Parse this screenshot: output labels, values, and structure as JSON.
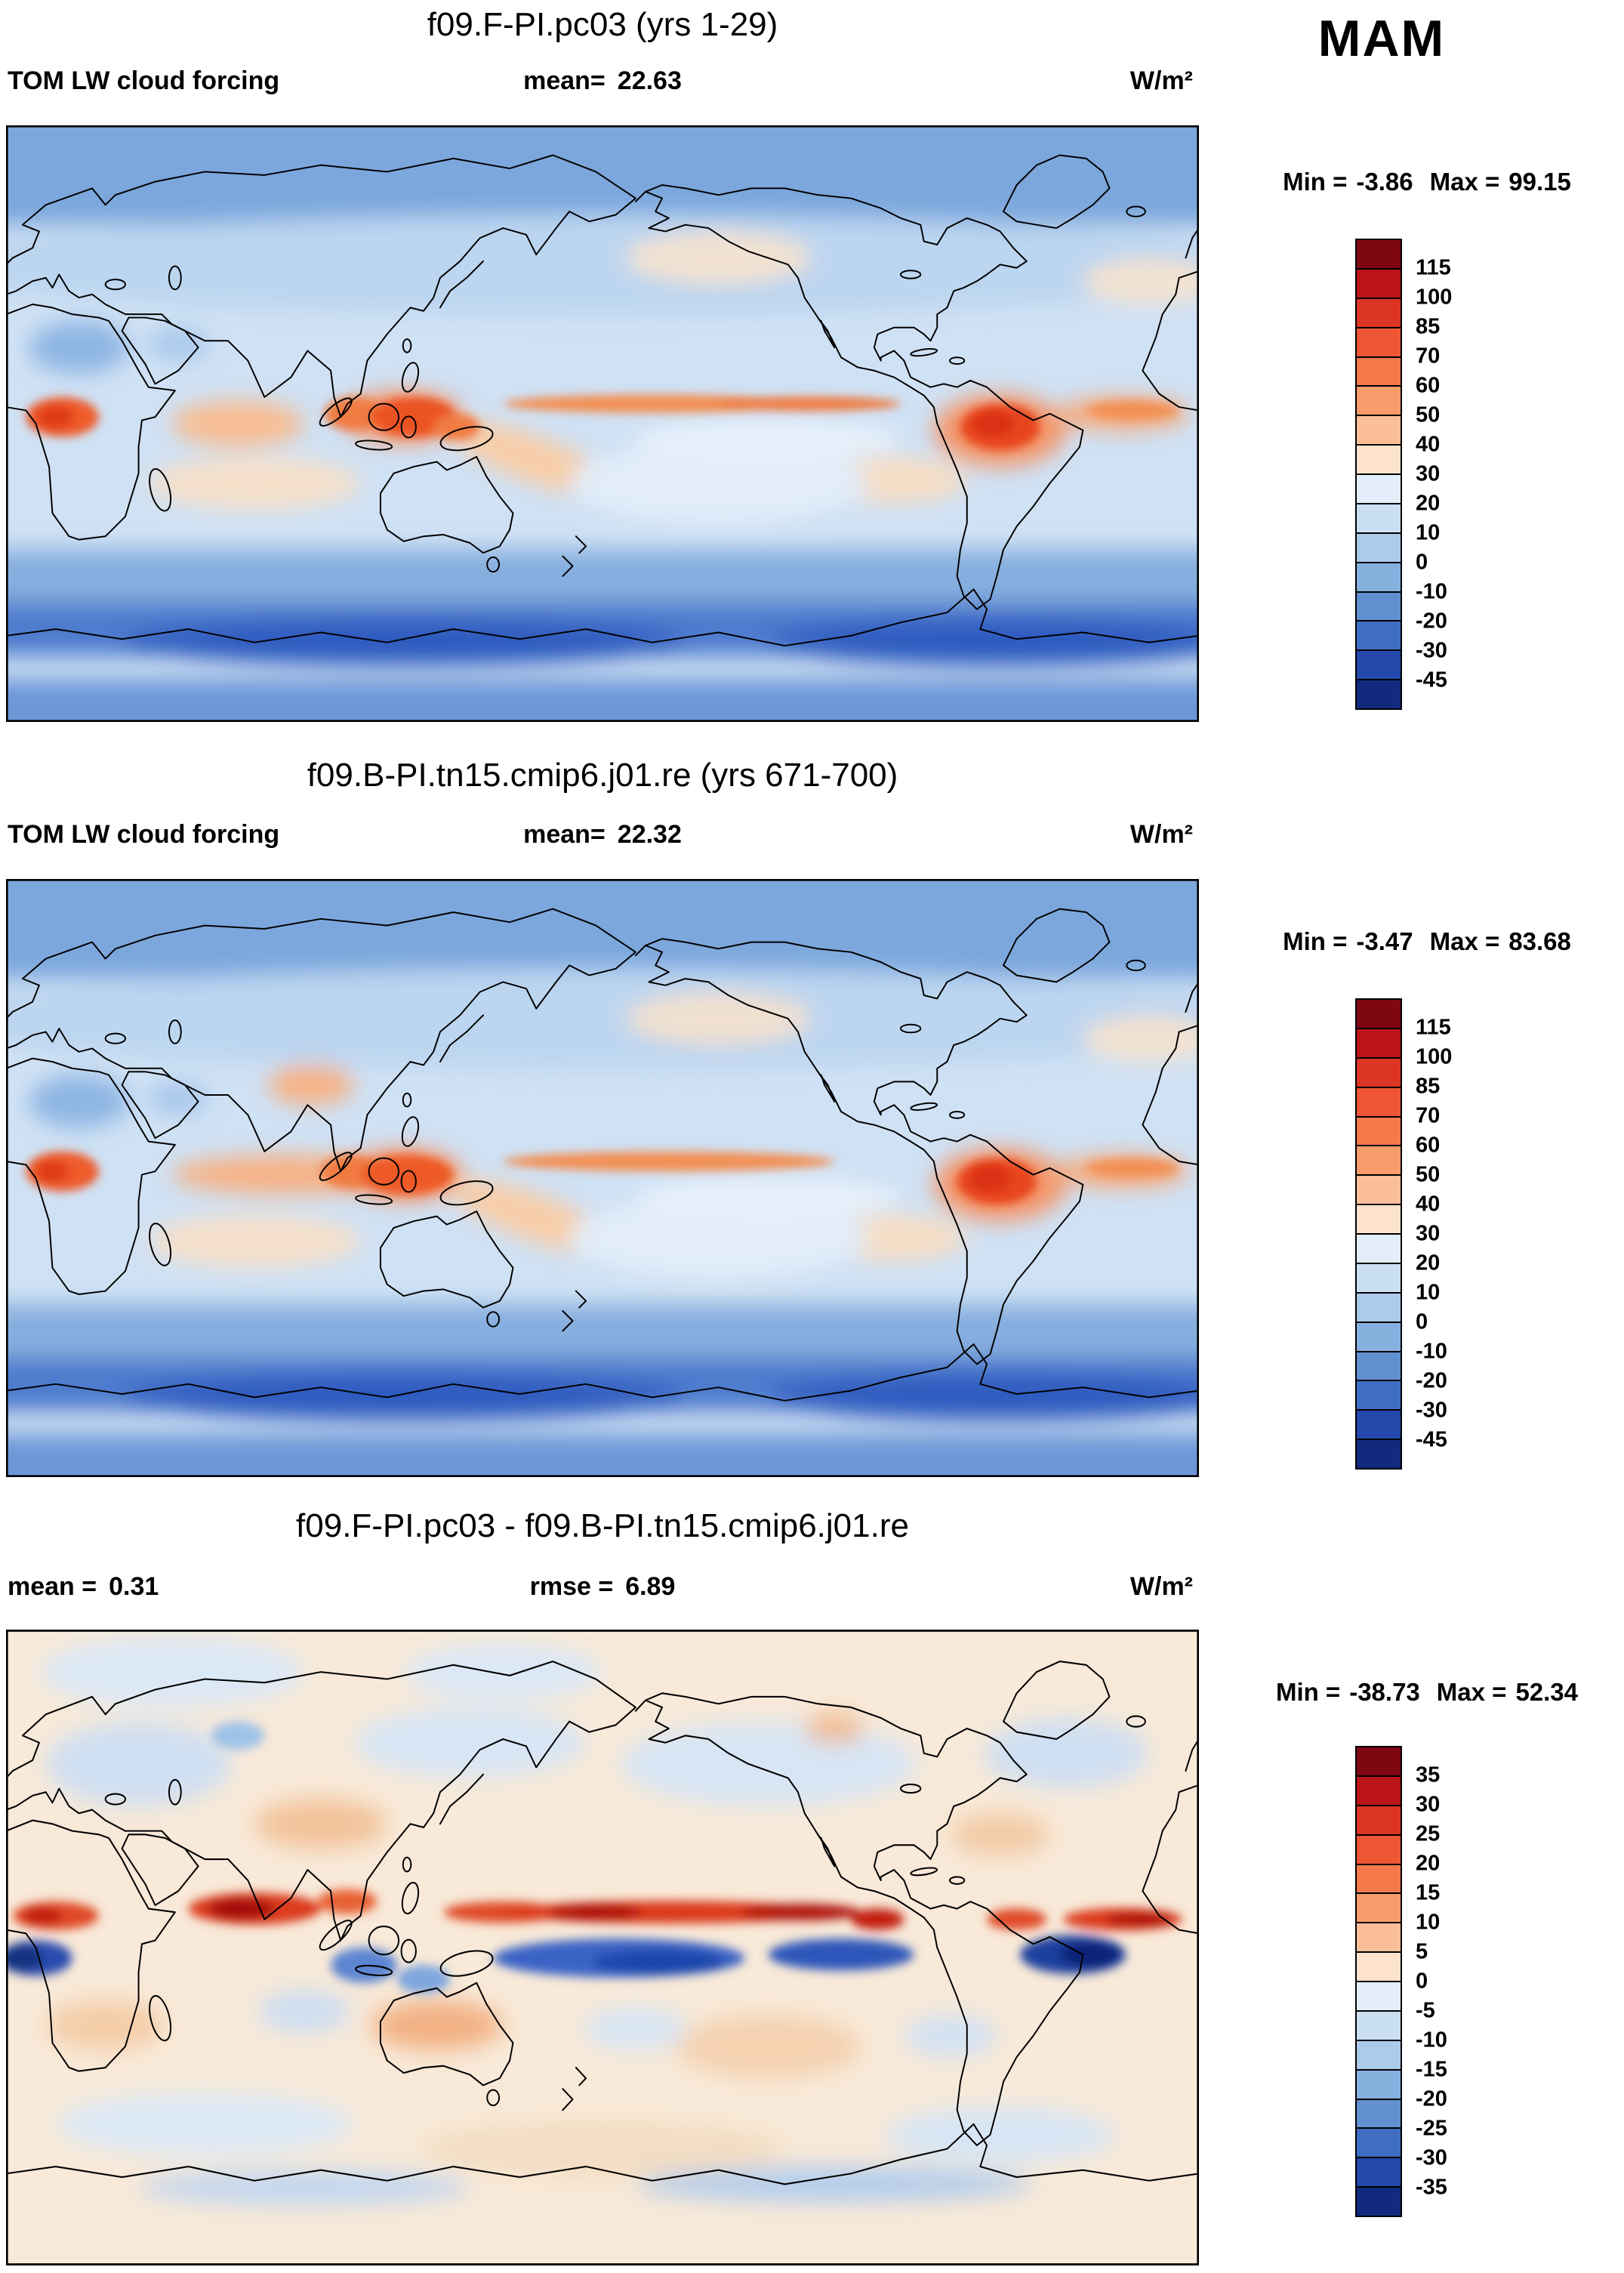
{
  "season": "MAM",
  "palettes": {
    "forcing": [
      "#7f0712",
      "#bb1419",
      "#dc3425",
      "#ee5634",
      "#f47a4c",
      "#f89c6b",
      "#fbbf97",
      "#fde3cb",
      "#e4eefa",
      "#cbdff3",
      "#abcbe9",
      "#86b0de",
      "#6190d1",
      "#3f6dc2",
      "#2348ab",
      "#122a7d"
    ],
    "diff": [
      "#7f0712",
      "#bb1419",
      "#dc3425",
      "#ee5634",
      "#f47a4c",
      "#f89c6b",
      "#fbbf97",
      "#fde3cb",
      "#e4eefa",
      "#cbdff3",
      "#abcbe9",
      "#86b0de",
      "#6190d1",
      "#3f6dc2",
      "#2348ab",
      "#122a7d"
    ]
  },
  "panels": [
    {
      "title": "f09.F-PI.pc03 (yrs 1-29)",
      "var_label": "TOM LW cloud forcing",
      "mean_label": "mean=",
      "mean": "22.63",
      "units": "W/m²",
      "min_label": "Min =",
      "min": "-3.86",
      "max_label": "Max =",
      "max": "99.15",
      "colorbar": {
        "palette": "forcing",
        "ticks": [
          "115",
          "100",
          "85",
          "70",
          "60",
          "50",
          "40",
          "30",
          "20",
          "10",
          "0",
          "-10",
          "-20",
          "-30",
          "-45"
        ]
      }
    },
    {
      "title": "f09.B-PI.tn15.cmip6.j01.re (yrs 671-700)",
      "var_label": "TOM LW cloud forcing",
      "mean_label": "mean=",
      "mean": "22.32",
      "units": "W/m²",
      "min_label": "Min =",
      "min": "-3.47",
      "max_label": "Max =",
      "max": "83.68",
      "colorbar": {
        "palette": "forcing",
        "ticks": [
          "115",
          "100",
          "85",
          "70",
          "60",
          "50",
          "40",
          "30",
          "20",
          "10",
          "0",
          "-10",
          "-20",
          "-30",
          "-45"
        ]
      }
    },
    {
      "title": "f09.F-PI.pc03 - f09.B-PI.tn15.cmip6.j01.re",
      "mean_label": "mean =",
      "mean": "0.31",
      "rmse_label": "rmse =",
      "rmse": "6.89",
      "units": "W/m²",
      "min_label": "Min =",
      "min": "-38.73",
      "max_label": "Max =",
      "max": "52.34",
      "colorbar": {
        "palette": "diff",
        "ticks": [
          "35",
          "30",
          "25",
          "20",
          "15",
          "10",
          "5",
          "0",
          "-5",
          "-10",
          "-15",
          "-20",
          "-25",
          "-30",
          "-35"
        ]
      }
    }
  ],
  "chart_data": [
    {
      "type": "heatmap",
      "subtype": "global lat-lon filled contour map",
      "title": "f09.F-PI.pc03 (yrs 1-29)",
      "variable": "TOM LW cloud forcing",
      "season": "MAM",
      "units": "W/m²",
      "stats": {
        "mean": 22.63,
        "min": -3.86,
        "max": 99.15
      },
      "contour_levels": [
        -45,
        -30,
        -20,
        -10,
        0,
        10,
        20,
        30,
        40,
        50,
        60,
        70,
        85,
        100,
        115
      ],
      "legend_position": "right",
      "palette_note": "dark blue (negative/low) through pale near 20-40 to dark red (high); maxima over equatorial Africa, Maritime Continent and Amazon; minima at poles and Southern Ocean"
    },
    {
      "type": "heatmap",
      "subtype": "global lat-lon filled contour map",
      "title": "f09.B-PI.tn15.cmip6.j01.re (yrs 671-700)",
      "variable": "TOM LW cloud forcing",
      "season": "MAM",
      "units": "W/m²",
      "stats": {
        "mean": 22.32,
        "min": -3.47,
        "max": 83.68
      },
      "contour_levels": [
        -45,
        -30,
        -20,
        -10,
        0,
        10,
        20,
        30,
        40,
        50,
        60,
        70,
        85,
        100,
        115
      ],
      "legend_position": "right",
      "palette_note": "same palette as top panel; similar tropical maxima, slightly weaker"
    },
    {
      "type": "heatmap",
      "subtype": "global lat-lon filled contour difference map",
      "title": "f09.F-PI.pc03 - f09.B-PI.tn15.cmip6.j01.re",
      "variable": "TOM LW cloud forcing difference",
      "season": "MAM",
      "units": "W/m²",
      "stats": {
        "mean": 0.31,
        "rmse": 6.89,
        "min": -38.73,
        "max": 52.34
      },
      "contour_levels": [
        -35,
        -30,
        -25,
        -20,
        -15,
        -10,
        -5,
        0,
        5,
        10,
        15,
        20,
        25,
        30,
        35
      ],
      "legend_position": "right",
      "palette_note": "red band along ITCZ just north of equator, dark blue band just south; strongest dipoles over tropical Atlantic and east Pacific"
    }
  ]
}
